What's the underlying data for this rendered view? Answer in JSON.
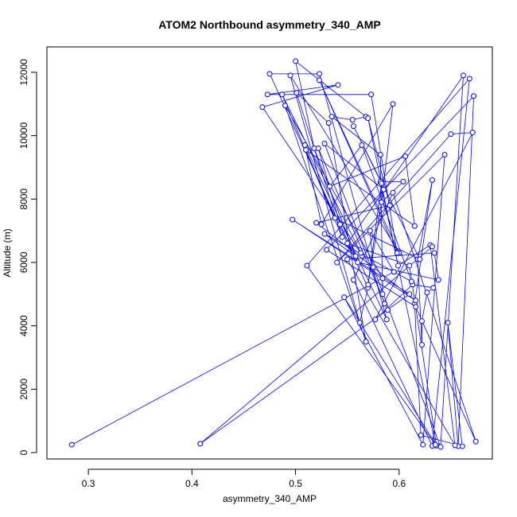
{
  "chart_data": {
    "type": "line",
    "title": "ATOM2 Northbound asymmetry_340_AMP",
    "xlabel": "asymmetry_340_AMP",
    "ylabel": "Altitude (m)",
    "xlim": [
      0.26,
      0.69
    ],
    "ylim": [
      -200,
      12800
    ],
    "xticks": [
      0.3,
      0.4,
      0.5,
      0.6
    ],
    "xtick_labels": [
      "0.3",
      "0.4",
      "0.5",
      "0.6"
    ],
    "yticks": [
      0,
      2000,
      4000,
      6000,
      8000,
      10000,
      12000
    ],
    "ytick_labels": [
      "0",
      "2000",
      "4000",
      "6000",
      "8000",
      "10000",
      "12000"
    ],
    "grid": false,
    "series": [
      {
        "color": "#0000ff",
        "marker": "open-circle",
        "points": [
          [
            0.284,
            250
          ],
          [
            0.595,
            5700
          ],
          [
            0.572,
            7000
          ],
          [
            0.575,
            5850
          ],
          [
            0.64,
            180
          ],
          [
            0.662,
            11900
          ],
          [
            0.55,
            6600
          ],
          [
            0.61,
            5900
          ],
          [
            0.636,
            220
          ],
          [
            0.547,
            4900
          ],
          [
            0.623,
            250
          ],
          [
            0.644,
            9400
          ],
          [
            0.54,
            6000
          ],
          [
            0.65,
            10050
          ],
          [
            0.671,
            10100
          ],
          [
            0.577,
            4200
          ],
          [
            0.613,
            5300
          ],
          [
            0.633,
            5200
          ],
          [
            0.627,
            5050
          ],
          [
            0.622,
            4150
          ],
          [
            0.622,
            3400
          ],
          [
            0.618,
            6100
          ],
          [
            0.632,
            8600
          ],
          [
            0.615,
            4700
          ],
          [
            0.621,
            550
          ],
          [
            0.661,
            200
          ],
          [
            0.647,
            4100
          ],
          [
            0.657,
            200
          ],
          [
            0.672,
            11250
          ],
          [
            0.53,
            6400
          ],
          [
            0.616,
            4600
          ],
          [
            0.674,
            350
          ],
          [
            0.594,
            8200
          ],
          [
            0.556,
            5450
          ],
          [
            0.632,
            210
          ],
          [
            0.668,
            11800
          ],
          [
            0.511,
            5900
          ],
          [
            0.635,
            250
          ],
          [
            0.582,
            8550
          ],
          [
            0.604,
            8550
          ],
          [
            0.583,
            7900
          ],
          [
            0.594,
            11000
          ],
          [
            0.525,
            7200
          ],
          [
            0.509,
            9700
          ],
          [
            0.588,
            4200
          ],
          [
            0.523,
            11950
          ],
          [
            0.475,
            11950
          ],
          [
            0.57,
            5200
          ],
          [
            0.562,
            4100
          ],
          [
            0.495,
            11900
          ],
          [
            0.6,
            6300
          ],
          [
            0.523,
            11750
          ],
          [
            0.598,
            6300
          ],
          [
            0.573,
            11300
          ],
          [
            0.473,
            11300
          ],
          [
            0.541,
            11600
          ],
          [
            0.468,
            10900
          ],
          [
            0.563,
            6300
          ],
          [
            0.487,
            11300
          ],
          [
            0.545,
            6800
          ],
          [
            0.501,
            11350
          ],
          [
            0.532,
            10400
          ],
          [
            0.568,
            3500
          ],
          [
            0.49,
            10950
          ],
          [
            0.584,
            5500
          ],
          [
            0.584,
            5000
          ],
          [
            0.582,
            9400
          ],
          [
            0.535,
            10600
          ],
          [
            0.555,
            10500
          ],
          [
            0.568,
            10600
          ],
          [
            0.5,
            12350
          ],
          [
            0.518,
            9600
          ],
          [
            0.558,
            6200
          ],
          [
            0.528,
            6900
          ],
          [
            0.612,
            5400
          ],
          [
            0.564,
            9700
          ],
          [
            0.533,
            8400
          ],
          [
            0.606,
            9350
          ],
          [
            0.615,
            7150
          ],
          [
            0.51,
            9550
          ],
          [
            0.538,
            7400
          ],
          [
            0.62,
            6100
          ],
          [
            0.556,
            10300
          ],
          [
            0.583,
            8500
          ],
          [
            0.57,
            5300
          ],
          [
            0.585,
            8300
          ],
          [
            0.528,
            9750
          ],
          [
            0.586,
            4700
          ],
          [
            0.589,
            4500
          ],
          [
            0.522,
            9600
          ],
          [
            0.543,
            7200
          ],
          [
            0.56,
            6000
          ],
          [
            0.638,
            5450
          ],
          [
            0.634,
            6300
          ],
          [
            0.55,
            6100
          ],
          [
            0.654,
            230
          ],
          [
            0.63,
            6550
          ],
          [
            0.599,
            5900
          ],
          [
            0.57,
            10550
          ],
          [
            0.591,
            7800
          ],
          [
            0.52,
            7250
          ],
          [
            0.616,
            4800
          ],
          [
            0.497,
            7350
          ],
          [
            0.61,
            5000
          ],
          [
            0.408,
            280
          ],
          [
            0.632,
            6500
          ]
        ]
      }
    ]
  }
}
